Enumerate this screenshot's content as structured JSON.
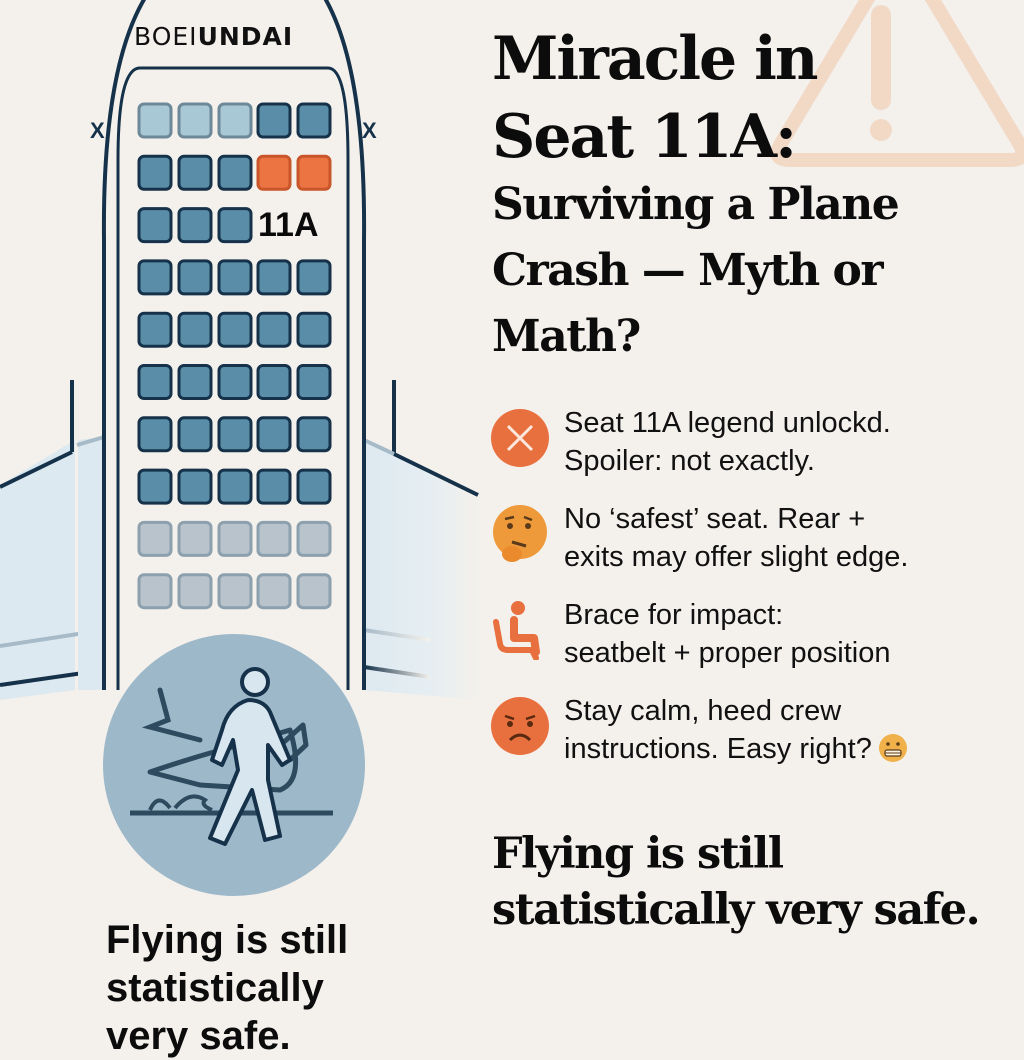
{
  "illustration": {
    "brand_text": {
      "thin": "BOEI",
      "bold": "UNDAI"
    },
    "highlight_seat_label": "11A",
    "exit_marks": [
      "X",
      "X"
    ],
    "seat_rows": 10,
    "seats_per_row": 5,
    "highlight_row": 1,
    "colors": {
      "seat_dark": "#5a8ea8",
      "seat_light": "#a9c8d6",
      "seat_faded": "#b8c3cc",
      "seat_highlight": "#ec7443",
      "outline": "#16324a",
      "wing": "#dde9f0",
      "survivor_circle": "#9db8c9"
    },
    "survivor_icon": "person-walking-from-crash-icon",
    "caption": "Flying is still statistically very safe."
  },
  "header": {
    "title_line1": "Miracle in",
    "title_line2": "Seat 11A:",
    "subtitle": "Surviving a Plane Crash — Myth or Math?",
    "background_icon": "warning-triangle-icon"
  },
  "facts": [
    {
      "icon": "x-circle-icon",
      "color": "#e8703f",
      "line1": "Seat 11A legend unlockd.",
      "line2": "Spoiler: not exactly."
    },
    {
      "icon": "thinking-face-icon",
      "color": "#ef9a3a",
      "line1": "No ‘safest’ seat. Rear +",
      "line2": "exits may offer slight edge."
    },
    {
      "icon": "seated-person-icon",
      "color": "#e8703f",
      "line1": "Brace for impact:",
      "line2": "seatbelt + proper position"
    },
    {
      "icon": "frowning-face-icon",
      "color": "#e8703f",
      "line1": "Stay calm, heed crew",
      "line2": "instructions. Easy right?",
      "trailing_icon": "grimacing-face-icon"
    }
  ],
  "closing": {
    "line1": "Flying is still",
    "line2": "statistically very safe."
  },
  "left_caption": {
    "line1": "Flying is still",
    "line2": "statistically",
    "line3": "very safe."
  }
}
